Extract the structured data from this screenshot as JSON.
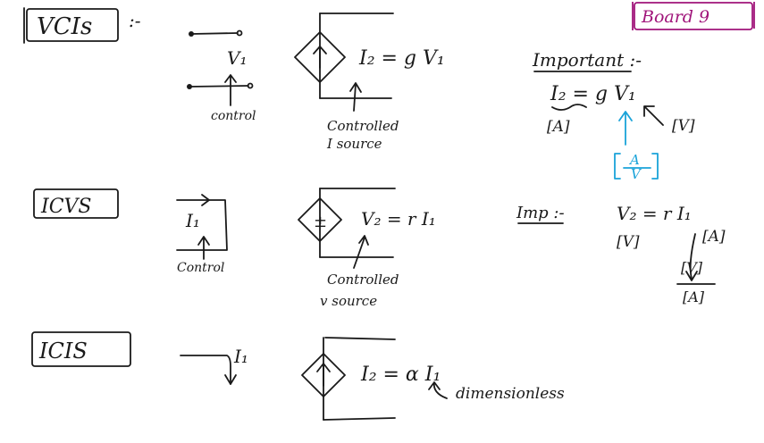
{
  "board_label": "Board 9",
  "colors": {
    "ink": "#1a1a1a",
    "highlight": "#1aa3d9",
    "board_label": "#a0147a"
  },
  "vcis": {
    "title": "VCIs",
    "title_suffix": ":-",
    "input_label": "V₁",
    "control_label": "control",
    "equation": "I₂ = g V₁",
    "source_symbol": "↑",
    "source_caption_line1": "Controlled",
    "source_caption_line2": "I source",
    "important_heading": "Important :-",
    "important_equation": "I₂ = g V₁",
    "unit_left": "[A]",
    "unit_right": "[V]",
    "g_unit_num": "A",
    "g_unit_den": "V"
  },
  "icvs": {
    "title": "ICVS",
    "input_label": "I₁",
    "control_label": "Control",
    "equation": "V₂ = r I₁",
    "source_symbol": "±",
    "source_caption_line1": "Controlled",
    "source_caption_line2": "v source",
    "imp_heading": "Imp :-",
    "imp_equation": "V₂ = r I₁",
    "unit_left": "[V]",
    "unit_right": "[A]",
    "r_unit_num": "[V]",
    "r_unit_den": "[A]"
  },
  "icis": {
    "title": "ICIS",
    "input_label": "I₁",
    "equation": "I₂ = α I₁",
    "source_symbol": "↑",
    "note": "dimensionless"
  }
}
